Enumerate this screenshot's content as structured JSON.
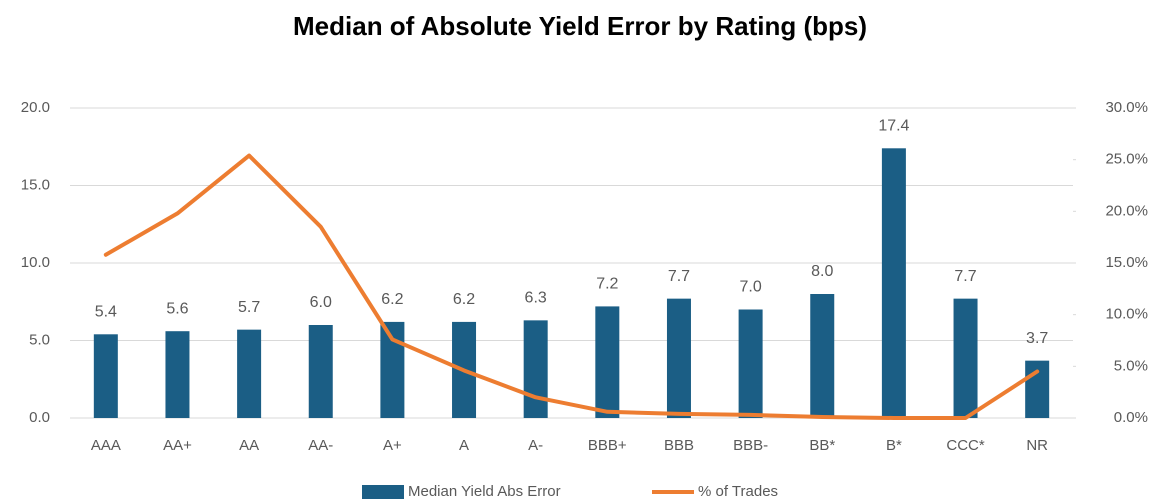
{
  "chart_data": {
    "type": "bar_line",
    "title": "Median of Absolute Yield Error by Rating (bps)",
    "categories": [
      "AAA",
      "AA+",
      "AA",
      "AA-",
      "A+",
      "A",
      "A-",
      "BBB+",
      "BBB",
      "BBB-",
      "BB*",
      "B*",
      "CCC*",
      "NR"
    ],
    "series": [
      {
        "name": "Median Yield Abs Error",
        "type": "bar",
        "color": "#1b5e85",
        "values": [
          5.4,
          5.6,
          5.7,
          6.0,
          6.2,
          6.2,
          6.3,
          7.2,
          7.7,
          7.0,
          8.0,
          17.4,
          7.7,
          3.7
        ],
        "value_labels": [
          "5.4",
          "5.6",
          "5.7",
          "6.0",
          "6.2",
          "6.2",
          "6.3",
          "7.2",
          "7.7",
          "7.0",
          "8.0",
          "17.4",
          "7.7",
          "3.7"
        ]
      },
      {
        "name": "% of Trades",
        "type": "line",
        "axis": "y2",
        "color": "#ed7d31",
        "values": [
          15.8,
          19.8,
          25.4,
          18.5,
          7.6,
          4.6,
          2.0,
          0.6,
          0.4,
          0.3,
          0.1,
          0.0,
          0.0,
          4.5
        ]
      }
    ],
    "ylim": [
      0,
      20
    ],
    "yticks": [
      {
        "value": 0,
        "label": "0.0"
      },
      {
        "value": 5,
        "label": "5.0"
      },
      {
        "value": 10,
        "label": "10.0"
      },
      {
        "value": 15,
        "label": "15.0"
      },
      {
        "value": 20,
        "label": "20.0"
      }
    ],
    "y2lim": [
      0,
      30
    ],
    "y2ticks": [
      {
        "value": 0,
        "label": "0.0%"
      },
      {
        "value": 5,
        "label": "5.0%"
      },
      {
        "value": 10,
        "label": "10.0%"
      },
      {
        "value": 15,
        "label": "15.0%"
      },
      {
        "value": 20,
        "label": "20.0%"
      },
      {
        "value": 25,
        "label": "25.0%"
      },
      {
        "value": 30,
        "label": "30.0%"
      }
    ],
    "grid": true,
    "legend": "bottom"
  }
}
